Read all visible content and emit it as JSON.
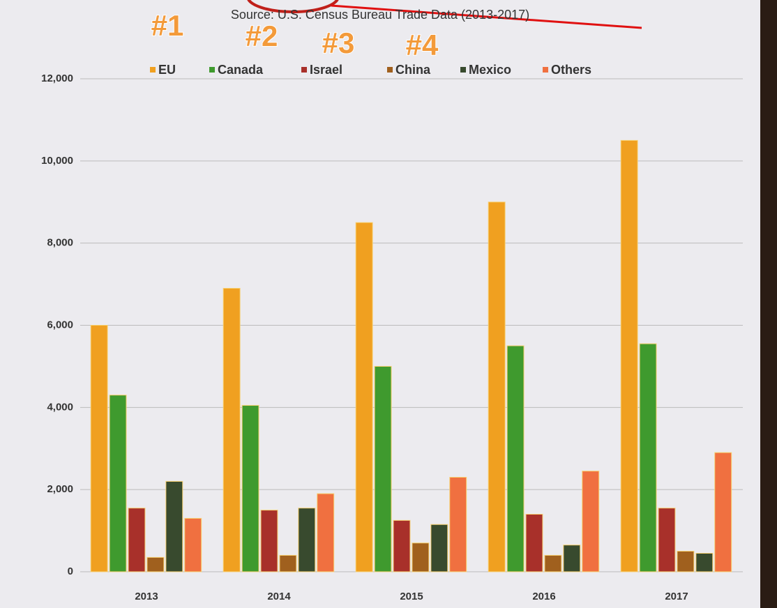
{
  "chart_data": {
    "type": "bar",
    "subtitle": "Source: U.S. Census Bureau Trade Data (2013-2017)",
    "annotations": [
      "#1",
      "#2",
      "#3",
      "#4"
    ],
    "categories": [
      "2013",
      "2014",
      "2015",
      "2016",
      "2017"
    ],
    "series": [
      {
        "name": "EU",
        "color": "#f0a020",
        "values": [
          6000,
          6900,
          8500,
          9000,
          10500
        ]
      },
      {
        "name": "Canada",
        "color": "#3f9a2e",
        "values": [
          4300,
          4050,
          5000,
          5500,
          5550
        ]
      },
      {
        "name": "Israel",
        "color": "#a8302a",
        "values": [
          1550,
          1500,
          1250,
          1400,
          1550
        ]
      },
      {
        "name": "China",
        "color": "#a0601e",
        "values": [
          350,
          400,
          700,
          400,
          500
        ]
      },
      {
        "name": "Mexico",
        "color": "#384a2e",
        "values": [
          2200,
          1550,
          1150,
          650,
          450
        ]
      },
      {
        "name": "Others",
        "color": "#f07040",
        "values": [
          1300,
          1900,
          2300,
          2450,
          2900
        ]
      }
    ],
    "ylim": [
      0,
      12000
    ],
    "yticks": [
      0,
      {
        "value": 2000,
        "label": "2,000"
      },
      {
        "value": 4000,
        "label": "4,000"
      },
      {
        "value": 6000,
        "label": "6,000"
      },
      {
        "value": 8000,
        "label": "8,000"
      },
      {
        "value": 10000,
        "label": "10,000"
      },
      {
        "value": 12000,
        "label": "12,000"
      }
    ],
    "grid": true
  }
}
